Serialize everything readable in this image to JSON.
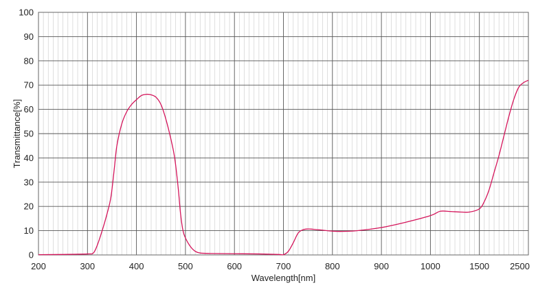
{
  "chart_data": {
    "type": "line",
    "title": "",
    "xlabel": "Wavelength[nm]",
    "ylabel": "Transmittance[%]",
    "x_tick_labels": [
      "200",
      "300",
      "400",
      "500",
      "600",
      "700",
      "800",
      "900",
      "1000",
      "1500",
      "2500"
    ],
    "y_ticks": [
      0,
      10,
      20,
      30,
      40,
      50,
      60,
      70,
      80,
      90,
      100
    ],
    "ylim": [
      0,
      100
    ],
    "x_scale": "piecewise: 200-1000 nm linear, 1000-1500 and 1500-2500 each one division",
    "grid": true,
    "legend": "none",
    "series": [
      {
        "color": "#d4145a",
        "points": [
          [
            200,
            0.1
          ],
          [
            250,
            0.2
          ],
          [
            300,
            0.4
          ],
          [
            312,
            0.8
          ],
          [
            320,
            4
          ],
          [
            330,
            10
          ],
          [
            340,
            17
          ],
          [
            348,
            24
          ],
          [
            355,
            36
          ],
          [
            360,
            45
          ],
          [
            370,
            54
          ],
          [
            380,
            59
          ],
          [
            390,
            62
          ],
          [
            400,
            64
          ],
          [
            410,
            65.7
          ],
          [
            420,
            66.2
          ],
          [
            430,
            66
          ],
          [
            440,
            65
          ],
          [
            450,
            62
          ],
          [
            460,
            56
          ],
          [
            470,
            48
          ],
          [
            478,
            40
          ],
          [
            485,
            28
          ],
          [
            490,
            17
          ],
          [
            495,
            10
          ],
          [
            500,
            7
          ],
          [
            510,
            3.5
          ],
          [
            520,
            1.5
          ],
          [
            530,
            0.8
          ],
          [
            550,
            0.6
          ],
          [
            600,
            0.5
          ],
          [
            650,
            0.4
          ],
          [
            690,
            0.2
          ],
          [
            700,
            0.1
          ],
          [
            710,
            1.5
          ],
          [
            720,
            5
          ],
          [
            730,
            9
          ],
          [
            740,
            10.4
          ],
          [
            750,
            10.7
          ],
          [
            760,
            10.6
          ],
          [
            780,
            10.2
          ],
          [
            800,
            9.8
          ],
          [
            820,
            9.7
          ],
          [
            850,
            10
          ],
          [
            900,
            11.3
          ],
          [
            950,
            13.5
          ],
          [
            1000,
            16.2
          ],
          [
            1100,
            18
          ],
          [
            1200,
            17.9
          ],
          [
            1300,
            17.7
          ],
          [
            1400,
            17.7
          ],
          [
            1500,
            19
          ],
          [
            1600,
            22
          ],
          [
            1700,
            27
          ],
          [
            1800,
            34
          ],
          [
            1900,
            41
          ],
          [
            2000,
            49
          ],
          [
            2100,
            57
          ],
          [
            2200,
            64
          ],
          [
            2300,
            69
          ],
          [
            2400,
            71
          ],
          [
            2500,
            72
          ]
        ]
      }
    ]
  }
}
